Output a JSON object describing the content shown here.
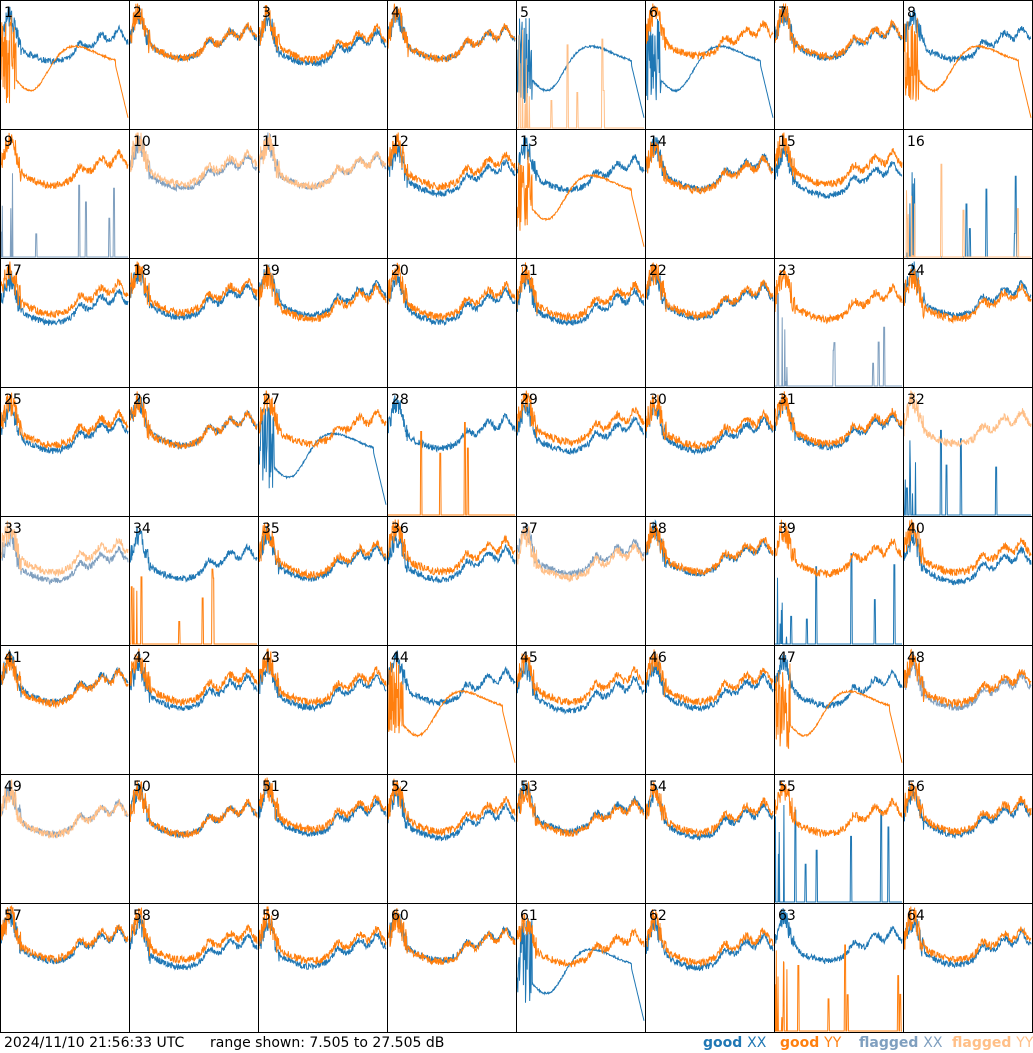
{
  "chart_data": {
    "type": "line",
    "layout": "8x8 small multiples",
    "panels": [
      "1",
      "2",
      "3",
      "4",
      "5",
      "6",
      "7",
      "8",
      "9",
      "10",
      "11",
      "12",
      "13",
      "14",
      "15",
      "16",
      "17",
      "18",
      "19",
      "20",
      "21",
      "22",
      "23",
      "24",
      "25",
      "26",
      "27",
      "28",
      "29",
      "30",
      "31",
      "32",
      "33",
      "34",
      "35",
      "36",
      "37",
      "38",
      "39",
      "40",
      "41",
      "42",
      "43",
      "44",
      "45",
      "46",
      "47",
      "48",
      "49",
      "50",
      "51",
      "52",
      "53",
      "54",
      "55",
      "56",
      "57",
      "58",
      "59",
      "60",
      "61",
      "62",
      "63",
      "64"
    ],
    "ylim": [
      7.505,
      27.505
    ],
    "yunit": "dB",
    "series": [
      {
        "name": "good XX",
        "color": "#1f77b4"
      },
      {
        "name": "good YY",
        "color": "#ff7f0e"
      },
      {
        "name": "flagged XX",
        "color": "#7f9fbf"
      },
      {
        "name": "flagged YY",
        "color": "#ffbf87"
      }
    ],
    "flagged": {
      "xx": [
        "9",
        "10",
        "11",
        "23",
        "33",
        "37",
        "48",
        "49"
      ],
      "yy": [
        "5",
        "10",
        "11",
        "16",
        "32",
        "33",
        "37",
        "49"
      ]
    },
    "behavior": {
      "drop_xx": [
        "5",
        "6",
        "27",
        "61"
      ],
      "drop_yy": [
        "1",
        "8",
        "13",
        "44",
        "47"
      ],
      "spike_xx": [
        "9",
        "16",
        "23",
        "32",
        "39",
        "55"
      ],
      "spike_yy": [
        "5",
        "16",
        "28",
        "34",
        "63"
      ]
    }
  },
  "footer": {
    "timestamp": "2024/11/10 21:56:33 UTC",
    "range_text": "range shown: 7.505 to 27.505 dB",
    "legend": [
      {
        "label": "good",
        "sym": "XX",
        "color": "#1f77b4"
      },
      {
        "label": "good",
        "sym": "YY",
        "color": "#ff7f0e"
      },
      {
        "label": "flagged",
        "sym": "XX",
        "color": "#7f9fbf"
      },
      {
        "label": "flagged",
        "sym": "YY",
        "color": "#ffbf87"
      }
    ]
  }
}
